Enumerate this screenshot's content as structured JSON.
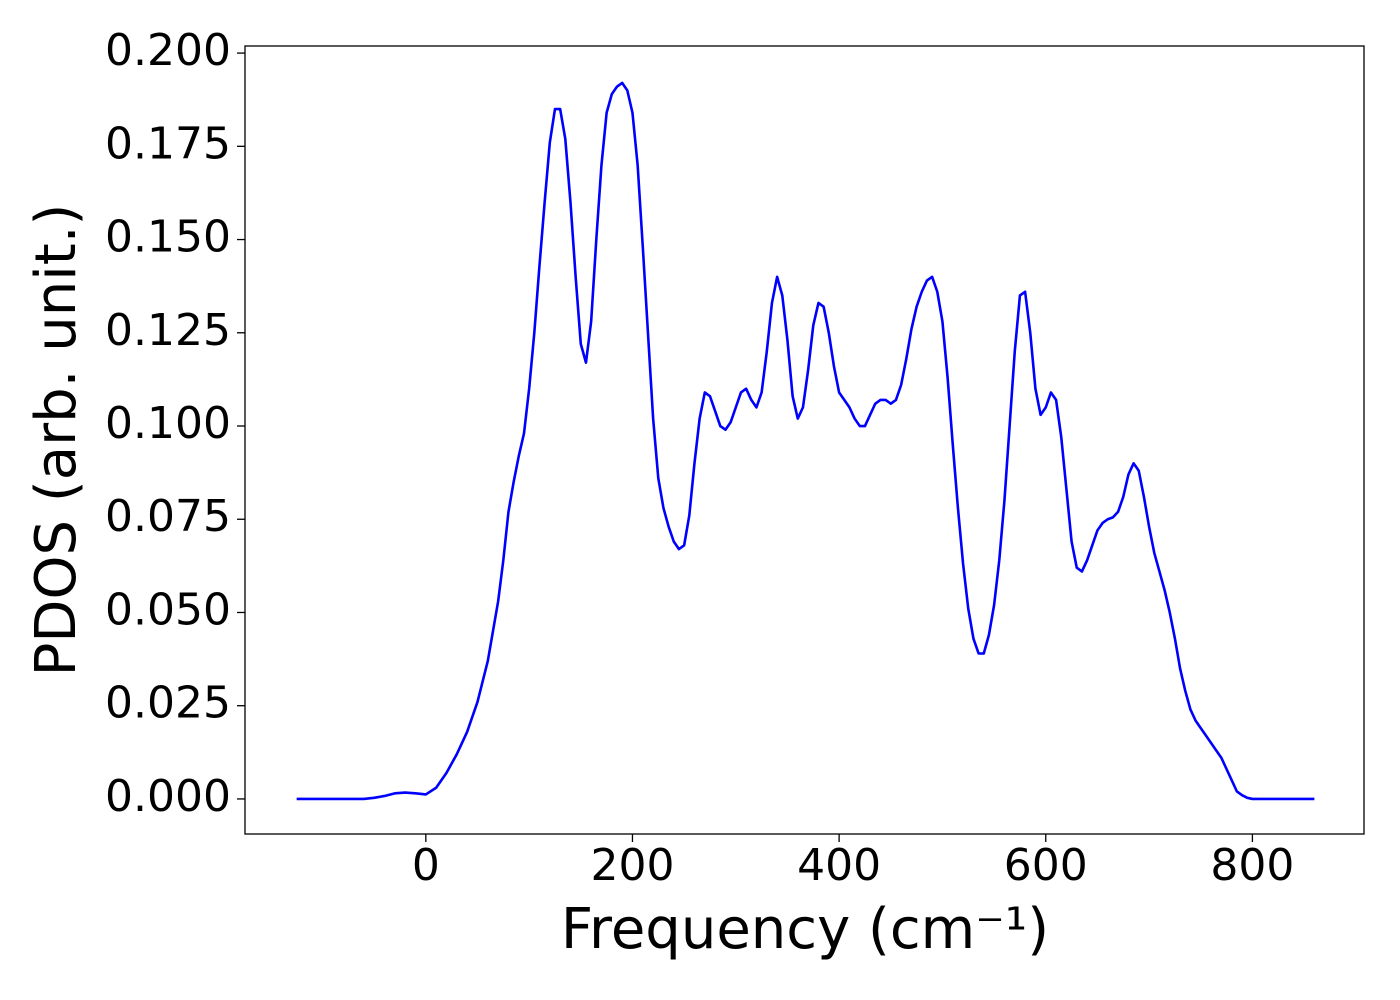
{
  "chart_data": {
    "type": "line",
    "xlabel": "Frequency (cm⁻¹)",
    "ylabel": "PDOS (arb. unit.)",
    "xlim": [
      -175,
      908
    ],
    "ylim": [
      -0.0094,
      0.2019
    ],
    "xticks": [
      0,
      200,
      400,
      600,
      800
    ],
    "yticks": [
      {
        "value": 0,
        "label": "0.000"
      },
      {
        "value": 0.025,
        "label": "0.025"
      },
      {
        "value": 0.05,
        "label": "0.050"
      },
      {
        "value": 0.075,
        "label": "0.075"
      },
      {
        "value": 0.1,
        "label": "0.100"
      },
      {
        "value": 0.125,
        "label": "0.125"
      },
      {
        "value": 0.15,
        "label": "0.150"
      },
      {
        "value": 0.175,
        "label": "0.175"
      },
      {
        "value": 0.2,
        "label": "0.200"
      }
    ],
    "grid": false,
    "x": [
      -125,
      -60,
      -50,
      -40,
      -30,
      -20,
      -10,
      0,
      10,
      20,
      30,
      40,
      50,
      60,
      70,
      75,
      80,
      85,
      90,
      95,
      100,
      105,
      110,
      115,
      120,
      125,
      130,
      135,
      140,
      145,
      150,
      155,
      160,
      165,
      170,
      175,
      180,
      185,
      190,
      195,
      200,
      205,
      210,
      215,
      220,
      225,
      230,
      235,
      240,
      245,
      250,
      255,
      260,
      265,
      270,
      275,
      280,
      285,
      290,
      295,
      300,
      305,
      310,
      315,
      320,
      325,
      330,
      335,
      340,
      345,
      350,
      355,
      360,
      365,
      370,
      375,
      380,
      385,
      390,
      395,
      400,
      405,
      410,
      415,
      420,
      425,
      430,
      435,
      440,
      445,
      450,
      455,
      460,
      465,
      470,
      475,
      480,
      485,
      490,
      495,
      500,
      505,
      510,
      515,
      520,
      525,
      530,
      535,
      540,
      545,
      550,
      555,
      560,
      565,
      570,
      575,
      580,
      585,
      590,
      595,
      600,
      605,
      610,
      615,
      620,
      625,
      630,
      635,
      640,
      645,
      650,
      655,
      660,
      665,
      670,
      675,
      680,
      685,
      690,
      695,
      700,
      705,
      710,
      715,
      720,
      725,
      730,
      735,
      740,
      745,
      750,
      755,
      760,
      765,
      770,
      775,
      780,
      785,
      790,
      795,
      800,
      860
    ],
    "series": [
      {
        "color": "#0000ff",
        "values": [
          0,
          0,
          0.0003,
          0.0008,
          0.0015,
          0.0017,
          0.0015,
          0.0012,
          0.003,
          0.007,
          0.012,
          0.018,
          0.026,
          0.037,
          0.053,
          0.064,
          0.077,
          0.085,
          0.092,
          0.098,
          0.11,
          0.125,
          0.143,
          0.16,
          0.176,
          0.185,
          0.185,
          0.177,
          0.16,
          0.14,
          0.122,
          0.117,
          0.128,
          0.15,
          0.17,
          0.184,
          0.189,
          0.191,
          0.192,
          0.19,
          0.184,
          0.17,
          0.148,
          0.125,
          0.102,
          0.086,
          0.078,
          0.073,
          0.069,
          0.067,
          0.068,
          0.076,
          0.09,
          0.102,
          0.109,
          0.108,
          0.104,
          0.1,
          0.099,
          0.101,
          0.105,
          0.109,
          0.11,
          0.107,
          0.105,
          0.109,
          0.12,
          0.133,
          0.14,
          0.135,
          0.123,
          0.108,
          0.102,
          0.105,
          0.115,
          0.127,
          0.133,
          0.132,
          0.125,
          0.116,
          0.109,
          0.107,
          0.105,
          0.102,
          0.1,
          0.1,
          0.103,
          0.106,
          0.107,
          0.107,
          0.106,
          0.107,
          0.111,
          0.118,
          0.126,
          0.132,
          0.136,
          0.139,
          0.14,
          0.136,
          0.128,
          0.113,
          0.095,
          0.078,
          0.063,
          0.051,
          0.043,
          0.039,
          0.039,
          0.044,
          0.052,
          0.064,
          0.08,
          0.1,
          0.12,
          0.135,
          0.136,
          0.125,
          0.11,
          0.103,
          0.105,
          0.109,
          0.107,
          0.097,
          0.083,
          0.069,
          0.062,
          0.061,
          0.064,
          0.068,
          0.072,
          0.074,
          0.075,
          0.0755,
          0.077,
          0.081,
          0.087,
          0.09,
          0.088,
          0.081,
          0.073,
          0.066,
          0.061,
          0.056,
          0.05,
          0.043,
          0.035,
          0.029,
          0.024,
          0.021,
          0.019,
          0.017,
          0.015,
          0.013,
          0.011,
          0.008,
          0.005,
          0.002,
          0.001,
          0.0003,
          0,
          0
        ]
      }
    ]
  }
}
